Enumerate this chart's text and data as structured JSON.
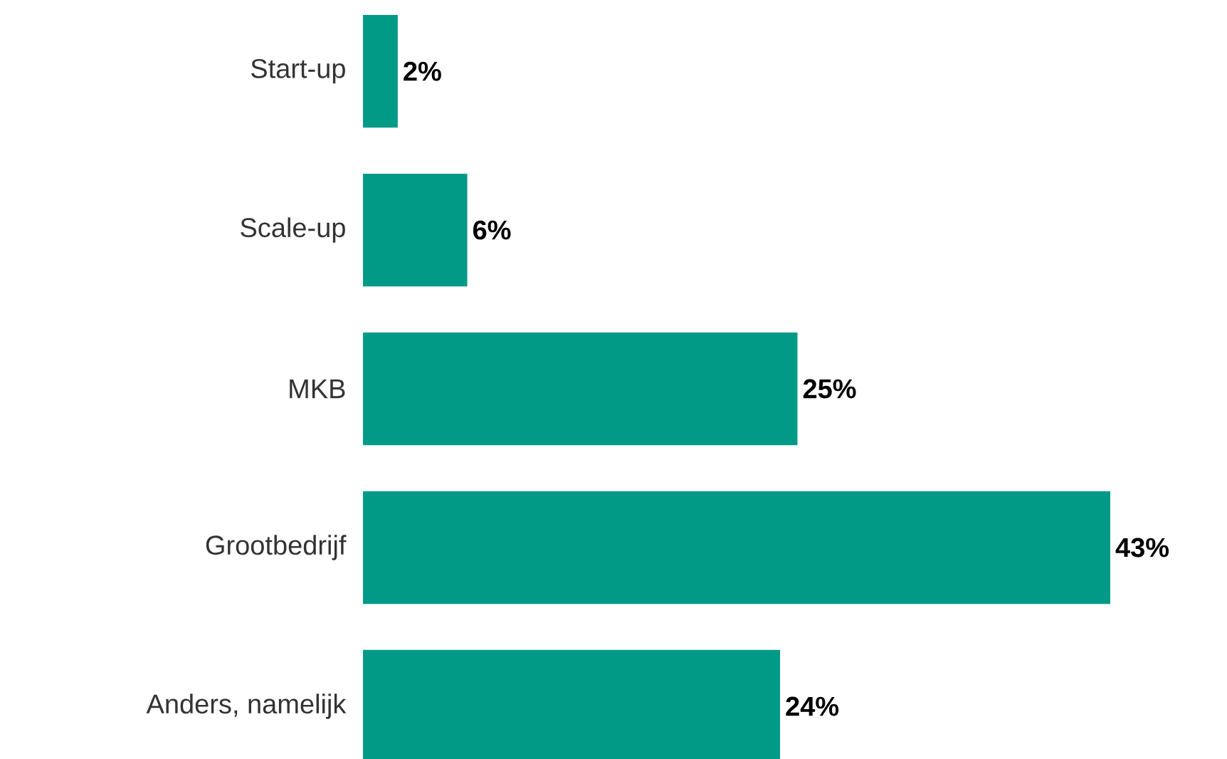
{
  "chart_data": {
    "type": "bar",
    "orientation": "horizontal",
    "categories": [
      "Start-up",
      "Scale-up",
      "MKB",
      "Grootbedrijf",
      "Anders, namelijk"
    ],
    "values": [
      2,
      6,
      25,
      43,
      24
    ],
    "value_labels": [
      "2%",
      "6%",
      "25%",
      "43%",
      "24%"
    ],
    "color": "#009a87",
    "tick_labels": "y"
  }
}
